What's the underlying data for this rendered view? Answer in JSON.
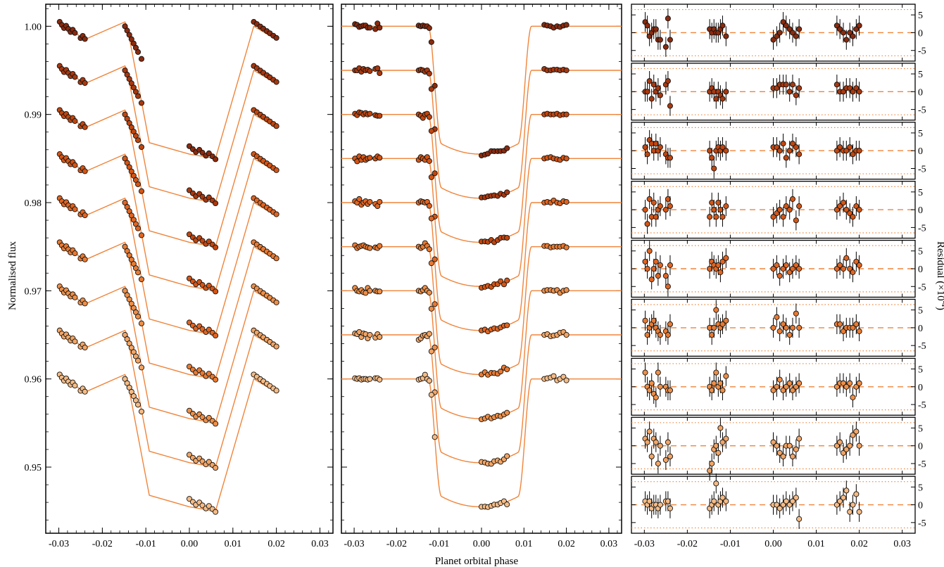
{
  "figure": {
    "xlabel": "Planet orbital phase",
    "ylabel_left": "Normalised flux",
    "ylabel_right_text": "Residual (×10",
    "ylabel_right_exponent": "-4",
    "ylabel_right_close": ")"
  },
  "chart_data": [
    {
      "panel": "raw-light-curves",
      "type": "scatter",
      "xlim": [
        -0.033,
        0.033
      ],
      "ylim": [
        0.9425,
        1.0025
      ],
      "xticks": [
        -0.03,
        -0.02,
        -0.01,
        0.0,
        0.01,
        0.02,
        0.03
      ],
      "xtick_labels": [
        "-0.03",
        "-0.02",
        "-0.01",
        "0.00",
        "0.01",
        "0.02",
        "0.03"
      ],
      "yticks": [
        0.95,
        0.96,
        0.97,
        0.98,
        0.99,
        1.0
      ],
      "ytick_labels": [
        "0.95",
        "0.96",
        "0.97",
        "0.98",
        "0.99",
        "1.00"
      ],
      "ylabel": "Normalised flux",
      "x": [
        -0.0298,
        -0.0293,
        -0.0288,
        -0.0283,
        -0.0278,
        -0.0273,
        -0.0268,
        -0.0263,
        -0.025,
        -0.0245,
        -0.024,
        -0.0148,
        -0.0143,
        -0.0138,
        -0.0133,
        -0.0128,
        -0.0123,
        -0.0118,
        -0.011,
        0.0,
        0.0008,
        0.0015,
        0.0023,
        0.003,
        0.0038,
        0.0045,
        0.0053,
        0.006,
        0.0148,
        0.0155,
        0.0163,
        0.017,
        0.0178,
        0.0185,
        0.0193,
        0.02
      ],
      "series": [
        {
          "offset": 0.0,
          "color": "#8b2a0e",
          "base": 1.0,
          "depth_dip": 0.0145
        },
        {
          "offset": 0.005,
          "color": "#a8380f",
          "base": 1.0,
          "depth_dip": 0.0145
        },
        {
          "offset": 0.01,
          "color": "#c0460f",
          "base": 1.0,
          "depth_dip": 0.0145
        },
        {
          "offset": 0.015,
          "color": "#d45515",
          "base": 1.0,
          "depth_dip": 0.0145
        },
        {
          "offset": 0.02,
          "color": "#e06522",
          "base": 1.0,
          "depth_dip": 0.0145
        },
        {
          "offset": 0.025,
          "color": "#e87a32",
          "base": 1.0,
          "depth_dip": 0.0145
        },
        {
          "offset": 0.03,
          "color": "#ee8f48",
          "base": 1.0,
          "depth_dip": 0.0145
        },
        {
          "offset": 0.035,
          "color": "#f2a565",
          "base": 1.0,
          "depth_dip": 0.0145
        },
        {
          "offset": 0.04,
          "color": "#f5bb85",
          "base": 1.0,
          "depth_dip": 0.0145
        }
      ]
    },
    {
      "panel": "detrended-light-curves",
      "type": "scatter",
      "xlim": [
        -0.033,
        0.033
      ],
      "ylim": [
        0.9425,
        1.0025
      ],
      "xticks": [
        -0.03,
        -0.02,
        -0.01,
        0.0,
        0.01,
        0.02,
        0.03
      ],
      "xtick_labels": [
        "-0.03",
        "-0.02",
        "-0.01",
        "0.00",
        "0.01",
        "0.02",
        "0.03"
      ],
      "model": {
        "transit_depth": 0.0145,
        "t14_half": 0.0122,
        "ingress": 0.0032
      },
      "offsets": [
        0.0,
        0.005,
        0.01,
        0.015,
        0.02,
        0.025,
        0.03,
        0.035,
        0.04
      ]
    },
    {
      "panel": "residuals",
      "type": "scatter",
      "xlim": [
        -0.033,
        0.033
      ],
      "ylim": [
        -8,
        8
      ],
      "xticks": [
        -0.03,
        -0.02,
        -0.01,
        0.0,
        0.01,
        0.02,
        0.03
      ],
      "xtick_labels": [
        "-0.03",
        "-0.02",
        "-0.01",
        "0.00",
        "0.01",
        "0.02",
        "0.03"
      ],
      "yticks": [
        -5,
        0,
        5
      ],
      "ytick_labels": [
        "-5",
        "0",
        "5"
      ],
      "ylabel": "Residual (×10^-4)",
      "n_subpanels": 9,
      "dotted_limits": [
        -6.5,
        6.5
      ],
      "residuals": [
        [
          3,
          2,
          -1,
          0,
          1,
          1,
          -2,
          -2,
          -4,
          4,
          -2,
          1,
          0,
          1,
          0,
          0,
          1,
          2,
          -1,
          -2,
          -1,
          0,
          3,
          2,
          1,
          0,
          -1,
          1,
          2,
          1,
          0,
          -2,
          0,
          -1,
          1,
          2
        ],
        [
          0,
          0,
          3,
          -2,
          2,
          0,
          1,
          -1,
          2,
          3,
          -4,
          0,
          1,
          0,
          -2,
          0,
          -1,
          -2,
          0,
          1,
          1,
          2,
          2,
          2,
          0,
          2,
          -1,
          1,
          2,
          0,
          0,
          1,
          1,
          0,
          1,
          0
        ],
        [
          1,
          -1,
          3,
          2,
          0,
          2,
          0,
          1,
          -1,
          -2,
          -2,
          0,
          -2,
          -5,
          0,
          1,
          0,
          1,
          0,
          1,
          1,
          0,
          2,
          -2,
          0,
          2,
          1,
          -1,
          0,
          1,
          0,
          0,
          1,
          -1,
          0,
          0
        ],
        [
          0,
          -4,
          3,
          -2,
          2,
          -2,
          0,
          1,
          0,
          3,
          1,
          -2,
          2,
          0,
          -2,
          2,
          0,
          -2,
          1,
          -2,
          -1,
          0,
          -2,
          1,
          0,
          3,
          -3,
          1,
          0,
          1,
          2,
          0,
          -1,
          -2,
          1,
          0
        ],
        [
          2,
          0,
          5,
          -3,
          0,
          2,
          -2,
          1,
          -2,
          -5,
          1,
          0,
          2,
          1,
          0,
          1,
          -1,
          2,
          3,
          0,
          1,
          -2,
          0,
          1,
          -1,
          0,
          1,
          0,
          0,
          1,
          0,
          3,
          0,
          -1,
          2,
          1
        ],
        [
          2,
          -2,
          0,
          1,
          2,
          0,
          -1,
          -2,
          -1,
          -2,
          1,
          0,
          -2,
          0,
          5,
          1,
          0,
          1,
          2,
          0,
          3,
          -1,
          1,
          0,
          -2,
          0,
          4,
          0,
          1,
          1,
          -1,
          0,
          0,
          0,
          1,
          -1
        ],
        [
          4,
          0,
          -1,
          1,
          -2,
          -3,
          4,
          0,
          0,
          -1,
          -1,
          0,
          -1,
          1,
          4,
          0,
          1,
          -1,
          3,
          -1,
          0,
          2,
          -1,
          0,
          1,
          -1,
          0,
          1,
          0,
          1,
          1,
          0,
          1,
          -3,
          0,
          1
        ],
        [
          2,
          1,
          4,
          -3,
          2,
          1,
          -5,
          0,
          -4,
          1,
          -3,
          -7,
          -5,
          -1,
          0,
          -2,
          5,
          1,
          2,
          1,
          0,
          -2,
          -3,
          0,
          0,
          -3,
          -1,
          2,
          0,
          1,
          -2,
          -1,
          0,
          3,
          4,
          0
        ],
        [
          1,
          0,
          1,
          -1,
          0,
          0,
          -1,
          0,
          1,
          1,
          -1,
          -1,
          0,
          1,
          6,
          0,
          1,
          2,
          1,
          0,
          0,
          -1,
          0,
          1,
          0,
          1,
          2,
          -4,
          0,
          1,
          2,
          4,
          -2,
          0,
          3,
          -2
        ]
      ]
    }
  ]
}
